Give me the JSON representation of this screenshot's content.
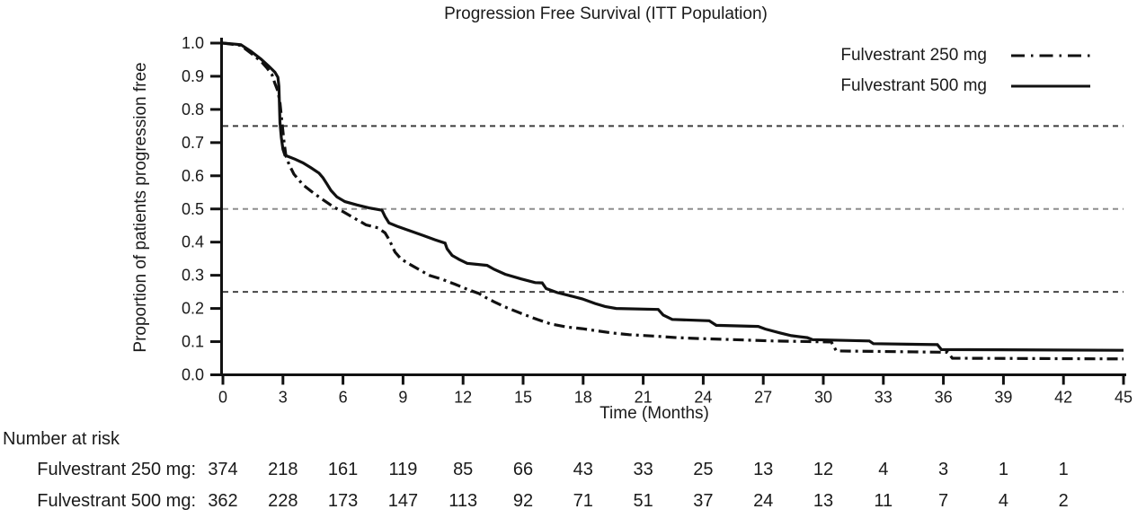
{
  "chart_data": {
    "type": "line",
    "subtype": "kaplan-meier-step",
    "title": "Progression Free Survival (ITT Population)",
    "xlabel": "Time (Months)",
    "ylabel": "Proportion of patients progression free",
    "xlim": [
      0,
      45
    ],
    "ylim": [
      0,
      1
    ],
    "x_ticks": [
      0,
      3,
      6,
      9,
      12,
      15,
      18,
      21,
      24,
      27,
      30,
      33,
      36,
      39,
      42,
      45
    ],
    "y_tick_labels": [
      "0.0",
      "0.1",
      "0.2",
      "0.3",
      "0.4",
      "0.5",
      "0.6",
      "0.7",
      "0.8",
      "0.9",
      "1.0"
    ],
    "grid": "off",
    "legend_position": "top-right",
    "ref_lines": [
      {
        "y": 0.75,
        "style": "dashed",
        "color": "#3c3c3c"
      },
      {
        "y": 0.5,
        "style": "dashed",
        "color": "#8e8e8e"
      },
      {
        "y": 0.25,
        "style": "dashed",
        "color": "#464646"
      }
    ],
    "series": [
      {
        "name": "Fulvestrant 250 mg",
        "line_style": "dash-dot",
        "color": "#111111",
        "points": [
          [
            0,
            1.0
          ],
          [
            0.9,
            0.993
          ],
          [
            1.5,
            0.965
          ],
          [
            1.95,
            0.942
          ],
          [
            2.2,
            0.925
          ],
          [
            2.45,
            0.905
          ],
          [
            2.6,
            0.878
          ],
          [
            2.75,
            0.855
          ],
          [
            2.85,
            0.82
          ],
          [
            2.95,
            0.762
          ],
          [
            3.05,
            0.705
          ],
          [
            3.15,
            0.66
          ],
          [
            3.3,
            0.635
          ],
          [
            3.55,
            0.605
          ],
          [
            4.0,
            0.573
          ],
          [
            4.5,
            0.549
          ],
          [
            5.0,
            0.528
          ],
          [
            5.55,
            0.505
          ],
          [
            6.0,
            0.492
          ],
          [
            6.4,
            0.478
          ],
          [
            6.9,
            0.461
          ],
          [
            7.15,
            0.452
          ],
          [
            7.75,
            0.443
          ],
          [
            8.1,
            0.428
          ],
          [
            8.3,
            0.408
          ],
          [
            8.6,
            0.37
          ],
          [
            8.9,
            0.349
          ],
          [
            9.4,
            0.331
          ],
          [
            9.9,
            0.314
          ],
          [
            10.3,
            0.3
          ],
          [
            10.95,
            0.288
          ],
          [
            11.6,
            0.273
          ],
          [
            12.2,
            0.258
          ],
          [
            12.8,
            0.245
          ],
          [
            13.1,
            0.234
          ],
          [
            13.55,
            0.22
          ],
          [
            14.2,
            0.202
          ],
          [
            14.95,
            0.184
          ],
          [
            15.7,
            0.167
          ],
          [
            16.4,
            0.153
          ],
          [
            17.2,
            0.144
          ],
          [
            17.95,
            0.139
          ],
          [
            18.65,
            0.133
          ],
          [
            19.45,
            0.126
          ],
          [
            20.3,
            0.121
          ],
          [
            21.5,
            0.117
          ],
          [
            22.7,
            0.112
          ],
          [
            23.9,
            0.109
          ],
          [
            25.5,
            0.106
          ],
          [
            27.5,
            0.102
          ],
          [
            30.4,
            0.099
          ],
          [
            30.65,
            0.072
          ],
          [
            36.2,
            0.068
          ],
          [
            36.45,
            0.05
          ],
          [
            45,
            0.048
          ]
        ]
      },
      {
        "name": "Fulvestrant 500 mg",
        "line_style": "solid",
        "color": "#111111",
        "points": [
          [
            0,
            1.0
          ],
          [
            0.9,
            0.995
          ],
          [
            1.4,
            0.975
          ],
          [
            1.9,
            0.952
          ],
          [
            2.3,
            0.93
          ],
          [
            2.6,
            0.912
          ],
          [
            2.75,
            0.897
          ],
          [
            2.8,
            0.87
          ],
          [
            2.85,
            0.76
          ],
          [
            2.92,
            0.715
          ],
          [
            3.0,
            0.68
          ],
          [
            3.1,
            0.662
          ],
          [
            3.6,
            0.65
          ],
          [
            4.0,
            0.639
          ],
          [
            4.4,
            0.624
          ],
          [
            4.8,
            0.608
          ],
          [
            5.0,
            0.594
          ],
          [
            5.2,
            0.575
          ],
          [
            5.4,
            0.556
          ],
          [
            5.7,
            0.536
          ],
          [
            6.1,
            0.522
          ],
          [
            6.7,
            0.512
          ],
          [
            7.3,
            0.503
          ],
          [
            7.95,
            0.496
          ],
          [
            8.1,
            0.477
          ],
          [
            8.3,
            0.458
          ],
          [
            8.7,
            0.448
          ],
          [
            9.3,
            0.435
          ],
          [
            10.0,
            0.42
          ],
          [
            10.6,
            0.407
          ],
          [
            11.1,
            0.397
          ],
          [
            11.2,
            0.38
          ],
          [
            11.45,
            0.36
          ],
          [
            11.8,
            0.348
          ],
          [
            12.2,
            0.336
          ],
          [
            13.2,
            0.33
          ],
          [
            13.55,
            0.318
          ],
          [
            14.1,
            0.303
          ],
          [
            14.9,
            0.289
          ],
          [
            15.6,
            0.278
          ],
          [
            15.95,
            0.277
          ],
          [
            16.15,
            0.26
          ],
          [
            16.7,
            0.248
          ],
          [
            17.3,
            0.239
          ],
          [
            17.95,
            0.229
          ],
          [
            18.6,
            0.215
          ],
          [
            19.1,
            0.206
          ],
          [
            19.65,
            0.2
          ],
          [
            21.75,
            0.197
          ],
          [
            22.0,
            0.18
          ],
          [
            22.45,
            0.167
          ],
          [
            24.3,
            0.163
          ],
          [
            24.65,
            0.149
          ],
          [
            26.75,
            0.146
          ],
          [
            27.1,
            0.138
          ],
          [
            27.85,
            0.126
          ],
          [
            28.4,
            0.118
          ],
          [
            29.2,
            0.112
          ],
          [
            29.45,
            0.106
          ],
          [
            32.3,
            0.102
          ],
          [
            32.5,
            0.094
          ],
          [
            35.7,
            0.091
          ],
          [
            35.9,
            0.076
          ],
          [
            45,
            0.074
          ]
        ]
      }
    ]
  },
  "risk_table": {
    "heading": "Number at risk",
    "months": [
      0,
      3,
      6,
      9,
      12,
      15,
      18,
      21,
      24,
      27,
      30,
      33,
      36,
      39,
      42
    ],
    "rows": [
      {
        "label": "Fulvestrant 250 mg:",
        "values": [
          374,
          218,
          161,
          119,
          85,
          66,
          43,
          33,
          25,
          13,
          12,
          4,
          3,
          1,
          1
        ]
      },
      {
        "label": "Fulvestrant 500 mg:",
        "values": [
          362,
          228,
          173,
          147,
          113,
          92,
          71,
          51,
          37,
          24,
          13,
          11,
          7,
          4,
          2
        ]
      }
    ]
  },
  "colors": {
    "background": "#ffffff",
    "axis": "#111111",
    "text": "#1a1a1a"
  }
}
